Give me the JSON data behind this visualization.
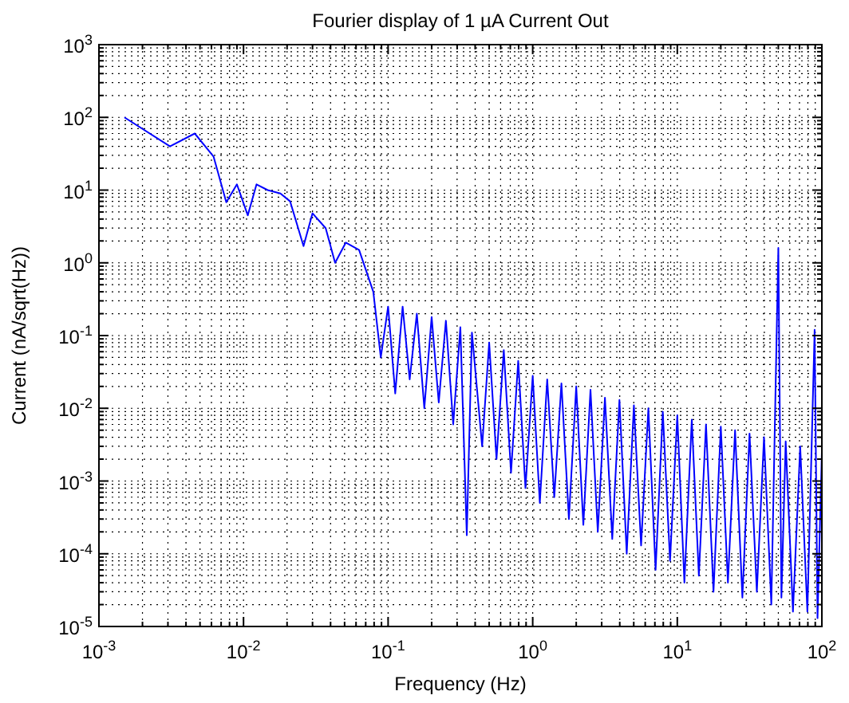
{
  "chart_data": {
    "type": "line",
    "title": "Fourier display of 1 µA Current Out",
    "xlabel": "Frequency (Hz)",
    "ylabel": "Current (nA/sqrt(Hz))",
    "log": "xy",
    "grid": true,
    "xlim": [
      0.001,
      100
    ],
    "ylim": [
      1e-05,
      1000
    ],
    "xticks": [
      {
        "value": 0.001,
        "label": "10$^{-3}$"
      },
      {
        "value": 0.01,
        "label": "10$^{-2}$"
      },
      {
        "value": 0.1,
        "label": "10$^{-1}$"
      },
      {
        "value": 1,
        "label": "10$^{0}$"
      },
      {
        "value": 10,
        "label": "10$^{1}$"
      },
      {
        "value": 100,
        "label": "10$^{2}$"
      }
    ],
    "yticks": [
      {
        "value": 1e-05,
        "label": "10$^{-5}$"
      },
      {
        "value": 0.0001,
        "label": "10$^{-4}$"
      },
      {
        "value": 0.001,
        "label": "10$^{-3}$"
      },
      {
        "value": 0.01,
        "label": "10$^{-2}$"
      },
      {
        "value": 0.1,
        "label": "10$^{-1}$"
      },
      {
        "value": 1,
        "label": "10$^{0}$"
      },
      {
        "value": 10,
        "label": "10$^{1}$"
      },
      {
        "value": 100,
        "label": "10$^{2}$"
      },
      {
        "value": 1000,
        "label": "10$^{3}$"
      }
    ],
    "series": [
      {
        "color": "#0000ff",
        "x": [
          0.0015,
          0.0031,
          0.0046,
          0.0062,
          0.0076,
          0.009,
          0.0107,
          0.0123,
          0.0147,
          0.018,
          0.021,
          0.026,
          0.03,
          0.037,
          0.043,
          0.051,
          0.063,
          0.079,
          0.089,
          0.1,
          0.112,
          0.126,
          0.141,
          0.158,
          0.178,
          0.2,
          0.224,
          0.251,
          0.282,
          0.316,
          0.35,
          0.38,
          0.447,
          0.5,
          0.562,
          0.631,
          0.708,
          0.794,
          0.891,
          1,
          1.12,
          1.26,
          1.41,
          1.58,
          1.78,
          2,
          2.24,
          2.51,
          2.82,
          3.16,
          3.55,
          3.98,
          4.47,
          5.01,
          5.62,
          6.31,
          7.08,
          7.94,
          8.91,
          10,
          11.2,
          12.6,
          14.1,
          15.8,
          17.8,
          20,
          22.4,
          25.1,
          28.2,
          31.6,
          35.5,
          39.8,
          44.7,
          50,
          52.5,
          56.2,
          63.1,
          70.8,
          79.4,
          89.1,
          93.3,
          100
        ],
        "values": [
          100,
          40,
          60,
          29,
          6.8,
          12,
          4.5,
          12,
          10,
          9,
          7,
          1.7,
          4.8,
          3,
          1.0,
          1.9,
          1.5,
          0.4,
          0.05,
          0.25,
          0.016,
          0.25,
          0.025,
          0.2,
          0.01,
          0.18,
          0.012,
          0.16,
          0.006,
          0.13,
          0.00018,
          0.11,
          0.003,
          0.08,
          0.002,
          0.063,
          0.0013,
          0.045,
          0.0008,
          0.028,
          0.0005,
          0.025,
          0.0006,
          0.022,
          0.0003,
          0.02,
          0.00025,
          0.018,
          0.0002,
          0.014,
          0.00016,
          0.013,
          0.0001,
          0.011,
          0.00013,
          0.01,
          6e-05,
          0.009,
          8e-05,
          0.008,
          4e-05,
          0.007,
          5e-05,
          0.006,
          3e-05,
          0.0056,
          4e-05,
          0.005,
          2.5e-05,
          0.0045,
          3e-05,
          0.004,
          2e-05,
          1.6,
          2.5e-05,
          0.0035,
          1.6e-05,
          0.003,
          1.6e-05,
          0.12,
          1.3e-05,
          0.0025
        ]
      }
    ]
  }
}
